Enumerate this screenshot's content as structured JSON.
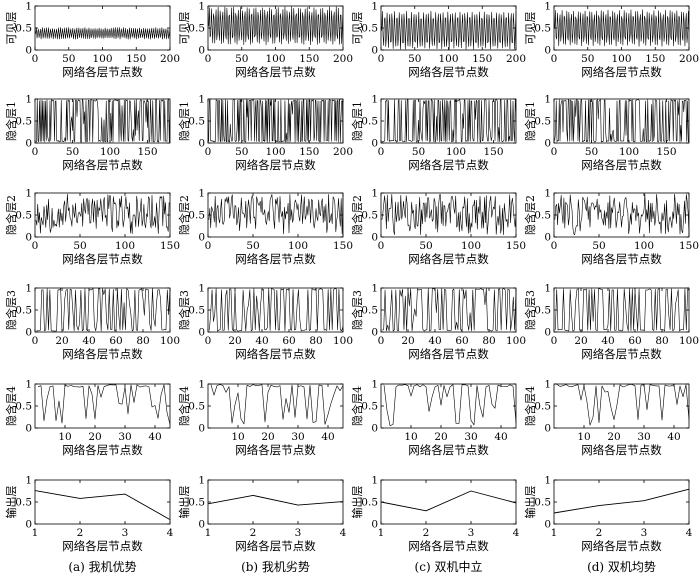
{
  "figure": {
    "xlabel": "网络各层节点数",
    "captions": [
      "(a) 我机优势",
      "(b) 我机劣势",
      "(c) 双机中立",
      "(d) 双机均势"
    ]
  },
  "chart_data": {
    "type": "line",
    "columns": 4,
    "rows": 6,
    "panels": [
      {
        "col": 0,
        "row": 0,
        "ylabel": "可见层",
        "xlim": [
          0,
          200
        ],
        "xticks": [
          0,
          50,
          100,
          150,
          200
        ],
        "ylim": [
          0,
          1
        ],
        "yticks": [
          0,
          0.5,
          1
        ],
        "n": 200,
        "gen": {
          "kind": "periodic",
          "center": 0.38,
          "amp": 0.13,
          "period": 3.0
        }
      },
      {
        "col": 1,
        "row": 0,
        "ylabel": "可见层",
        "xlim": [
          0,
          200
        ],
        "xticks": [
          0,
          50,
          100,
          150,
          200
        ],
        "ylim": [
          0,
          1
        ],
        "yticks": [
          0,
          0.5,
          1
        ],
        "n": 200,
        "gen": {
          "kind": "periodic",
          "center": 0.55,
          "amp": 0.42,
          "period": 3.3
        }
      },
      {
        "col": 2,
        "row": 0,
        "ylabel": "可见层",
        "xlim": [
          0,
          200
        ],
        "xticks": [
          0,
          50,
          100,
          150,
          200
        ],
        "ylim": [
          0,
          1
        ],
        "yticks": [
          0,
          0.5,
          1
        ],
        "n": 200,
        "gen": {
          "kind": "periodic",
          "center": 0.45,
          "amp": 0.42,
          "period": 3.6
        }
      },
      {
        "col": 3,
        "row": 0,
        "ylabel": "可见层",
        "xlim": [
          0,
          200
        ],
        "xticks": [
          0,
          50,
          100,
          150,
          200
        ],
        "ylim": [
          0,
          1
        ],
        "yticks": [
          0,
          0.5,
          1
        ],
        "n": 200,
        "gen": {
          "kind": "periodic",
          "center": 0.5,
          "amp": 0.4,
          "period": 3.4
        }
      },
      {
        "col": 0,
        "row": 1,
        "ylabel": "隐含层1",
        "xlim": [
          0,
          180
        ],
        "xticks": [
          0,
          50,
          100,
          150
        ],
        "ylim": [
          0,
          1
        ],
        "yticks": [
          0,
          0.5,
          1
        ],
        "n": 180,
        "gen": {
          "kind": "binary",
          "seed": 11
        }
      },
      {
        "col": 1,
        "row": 1,
        "ylabel": "隐含层1",
        "xlim": [
          0,
          200
        ],
        "xticks": [
          0,
          50,
          100,
          150,
          200
        ],
        "ylim": [
          0,
          1
        ],
        "yticks": [
          0,
          0.5,
          1
        ],
        "n": 200,
        "gen": {
          "kind": "binary",
          "seed": 23
        }
      },
      {
        "col": 2,
        "row": 1,
        "ylabel": "隐含层1",
        "xlim": [
          0,
          180
        ],
        "xticks": [
          0,
          50,
          100,
          150
        ],
        "ylim": [
          0,
          1
        ],
        "yticks": [
          0,
          0.5,
          1
        ],
        "n": 180,
        "gen": {
          "kind": "binary",
          "seed": 37
        }
      },
      {
        "col": 3,
        "row": 1,
        "ylabel": "隐含层1",
        "xlim": [
          0,
          180
        ],
        "xticks": [
          0,
          50,
          100,
          150
        ],
        "ylim": [
          0,
          1
        ],
        "yticks": [
          0,
          0.5,
          1
        ],
        "n": 180,
        "gen": {
          "kind": "binary",
          "seed": 41
        }
      },
      {
        "col": 0,
        "row": 2,
        "ylabel": "隐含层2",
        "xlim": [
          0,
          150
        ],
        "xticks": [
          0,
          50,
          100,
          150
        ],
        "ylim": [
          0,
          1
        ],
        "yticks": [
          0,
          0.5,
          1
        ],
        "n": 150,
        "gen": {
          "kind": "random",
          "seed": 53
        }
      },
      {
        "col": 1,
        "row": 2,
        "ylabel": "隐含层2",
        "xlim": [
          0,
          150
        ],
        "xticks": [
          0,
          50,
          100,
          150
        ],
        "ylim": [
          0,
          1
        ],
        "yticks": [
          0,
          0.5,
          1
        ],
        "n": 150,
        "gen": {
          "kind": "random",
          "seed": 61
        }
      },
      {
        "col": 2,
        "row": 2,
        "ylabel": "隐含层2",
        "xlim": [
          0,
          150
        ],
        "xticks": [
          0,
          50,
          100,
          150
        ],
        "ylim": [
          0,
          1
        ],
        "yticks": [
          0,
          0.5,
          1
        ],
        "n": 150,
        "gen": {
          "kind": "random",
          "seed": 71
        }
      },
      {
        "col": 3,
        "row": 2,
        "ylabel": "隐含层2",
        "xlim": [
          0,
          150
        ],
        "xticks": [
          0,
          50,
          100,
          150
        ],
        "ylim": [
          0,
          1
        ],
        "yticks": [
          0,
          0.5,
          1
        ],
        "n": 150,
        "gen": {
          "kind": "random",
          "seed": 83
        }
      },
      {
        "col": 0,
        "row": 3,
        "ylabel": "隐含层3",
        "xlim": [
          0,
          100
        ],
        "xticks": [
          0,
          20,
          40,
          60,
          80,
          100
        ],
        "ylim": [
          0,
          1
        ],
        "yticks": [
          0,
          0.5,
          1
        ],
        "n": 100,
        "gen": {
          "kind": "binary",
          "seed": 97
        }
      },
      {
        "col": 1,
        "row": 3,
        "ylabel": "隐含层3",
        "xlim": [
          0,
          100
        ],
        "xticks": [
          0,
          20,
          40,
          60,
          80,
          100
        ],
        "ylim": [
          0,
          1
        ],
        "yticks": [
          0,
          0.5,
          1
        ],
        "n": 100,
        "gen": {
          "kind": "binary",
          "seed": 101
        }
      },
      {
        "col": 2,
        "row": 3,
        "ylabel": "隐含层3",
        "xlim": [
          0,
          100
        ],
        "xticks": [
          0,
          20,
          40,
          60,
          80,
          100
        ],
        "ylim": [
          0,
          1
        ],
        "yticks": [
          0,
          0.5,
          1
        ],
        "n": 100,
        "gen": {
          "kind": "binary",
          "seed": 113
        }
      },
      {
        "col": 3,
        "row": 3,
        "ylabel": "隐含层3",
        "xlim": [
          0,
          100
        ],
        "xticks": [
          0,
          20,
          40,
          60,
          80,
          100
        ],
        "ylim": [
          0,
          1
        ],
        "yticks": [
          0,
          0.5,
          1
        ],
        "n": 100,
        "gen": {
          "kind": "binary",
          "seed": 127
        }
      },
      {
        "col": 0,
        "row": 4,
        "ylabel": "隐含层4",
        "xlim": [
          0,
          45
        ],
        "xticks": [
          10,
          20,
          30,
          40
        ],
        "ylim": [
          0,
          1
        ],
        "yticks": [
          0,
          0.5,
          1
        ],
        "n": 45,
        "gen": {
          "kind": "dips",
          "seed": 131
        }
      },
      {
        "col": 1,
        "row": 4,
        "ylabel": "隐含层4",
        "xlim": [
          0,
          45
        ],
        "xticks": [
          10,
          20,
          30,
          40
        ],
        "ylim": [
          0,
          1
        ],
        "yticks": [
          0,
          0.5,
          1
        ],
        "n": 45,
        "gen": {
          "kind": "dips",
          "seed": 139
        }
      },
      {
        "col": 2,
        "row": 4,
        "ylabel": "隐含层4",
        "xlim": [
          0,
          45
        ],
        "xticks": [
          10,
          20,
          30,
          40
        ],
        "ylim": [
          0,
          1
        ],
        "yticks": [
          0,
          0.5,
          1
        ],
        "n": 45,
        "gen": {
          "kind": "dips",
          "seed": 149
        }
      },
      {
        "col": 3,
        "row": 4,
        "ylabel": "隐含层4",
        "xlim": [
          0,
          45
        ],
        "xticks": [
          10,
          20,
          30,
          40
        ],
        "ylim": [
          0,
          1
        ],
        "yticks": [
          0,
          0.5,
          1
        ],
        "n": 45,
        "gen": {
          "kind": "dips",
          "seed": 151
        }
      },
      {
        "col": 0,
        "row": 5,
        "ylabel": "输出层",
        "xlim": [
          1,
          4
        ],
        "xticks": [
          1,
          2,
          3,
          4
        ],
        "ylim": [
          0,
          1
        ],
        "yticks": [
          0,
          0.5,
          1
        ],
        "x": [
          1,
          2,
          3,
          4
        ],
        "y": [
          0.76,
          0.58,
          0.68,
          0.1
        ]
      },
      {
        "col": 1,
        "row": 5,
        "ylabel": "输出层",
        "xlim": [
          1,
          4
        ],
        "xticks": [
          1,
          2,
          3,
          4
        ],
        "ylim": [
          0,
          1
        ],
        "yticks": [
          0,
          0.5,
          1
        ],
        "x": [
          1,
          2,
          3,
          4
        ],
        "y": [
          0.46,
          0.65,
          0.43,
          0.51
        ]
      },
      {
        "col": 2,
        "row": 5,
        "ylabel": "输出层",
        "xlim": [
          1,
          4
        ],
        "xticks": [
          1,
          2,
          3,
          4
        ],
        "ylim": [
          0,
          1
        ],
        "yticks": [
          0,
          0.5,
          1
        ],
        "x": [
          1,
          2,
          3,
          4
        ],
        "y": [
          0.5,
          0.3,
          0.75,
          0.48
        ]
      },
      {
        "col": 3,
        "row": 5,
        "ylabel": "输出层",
        "xlim": [
          1,
          4
        ],
        "xticks": [
          1,
          2,
          3,
          4
        ],
        "ylim": [
          0,
          1
        ],
        "yticks": [
          0,
          0.5,
          1
        ],
        "x": [
          1,
          2,
          3,
          4
        ],
        "y": [
          0.25,
          0.42,
          0.53,
          0.79
        ]
      }
    ]
  }
}
